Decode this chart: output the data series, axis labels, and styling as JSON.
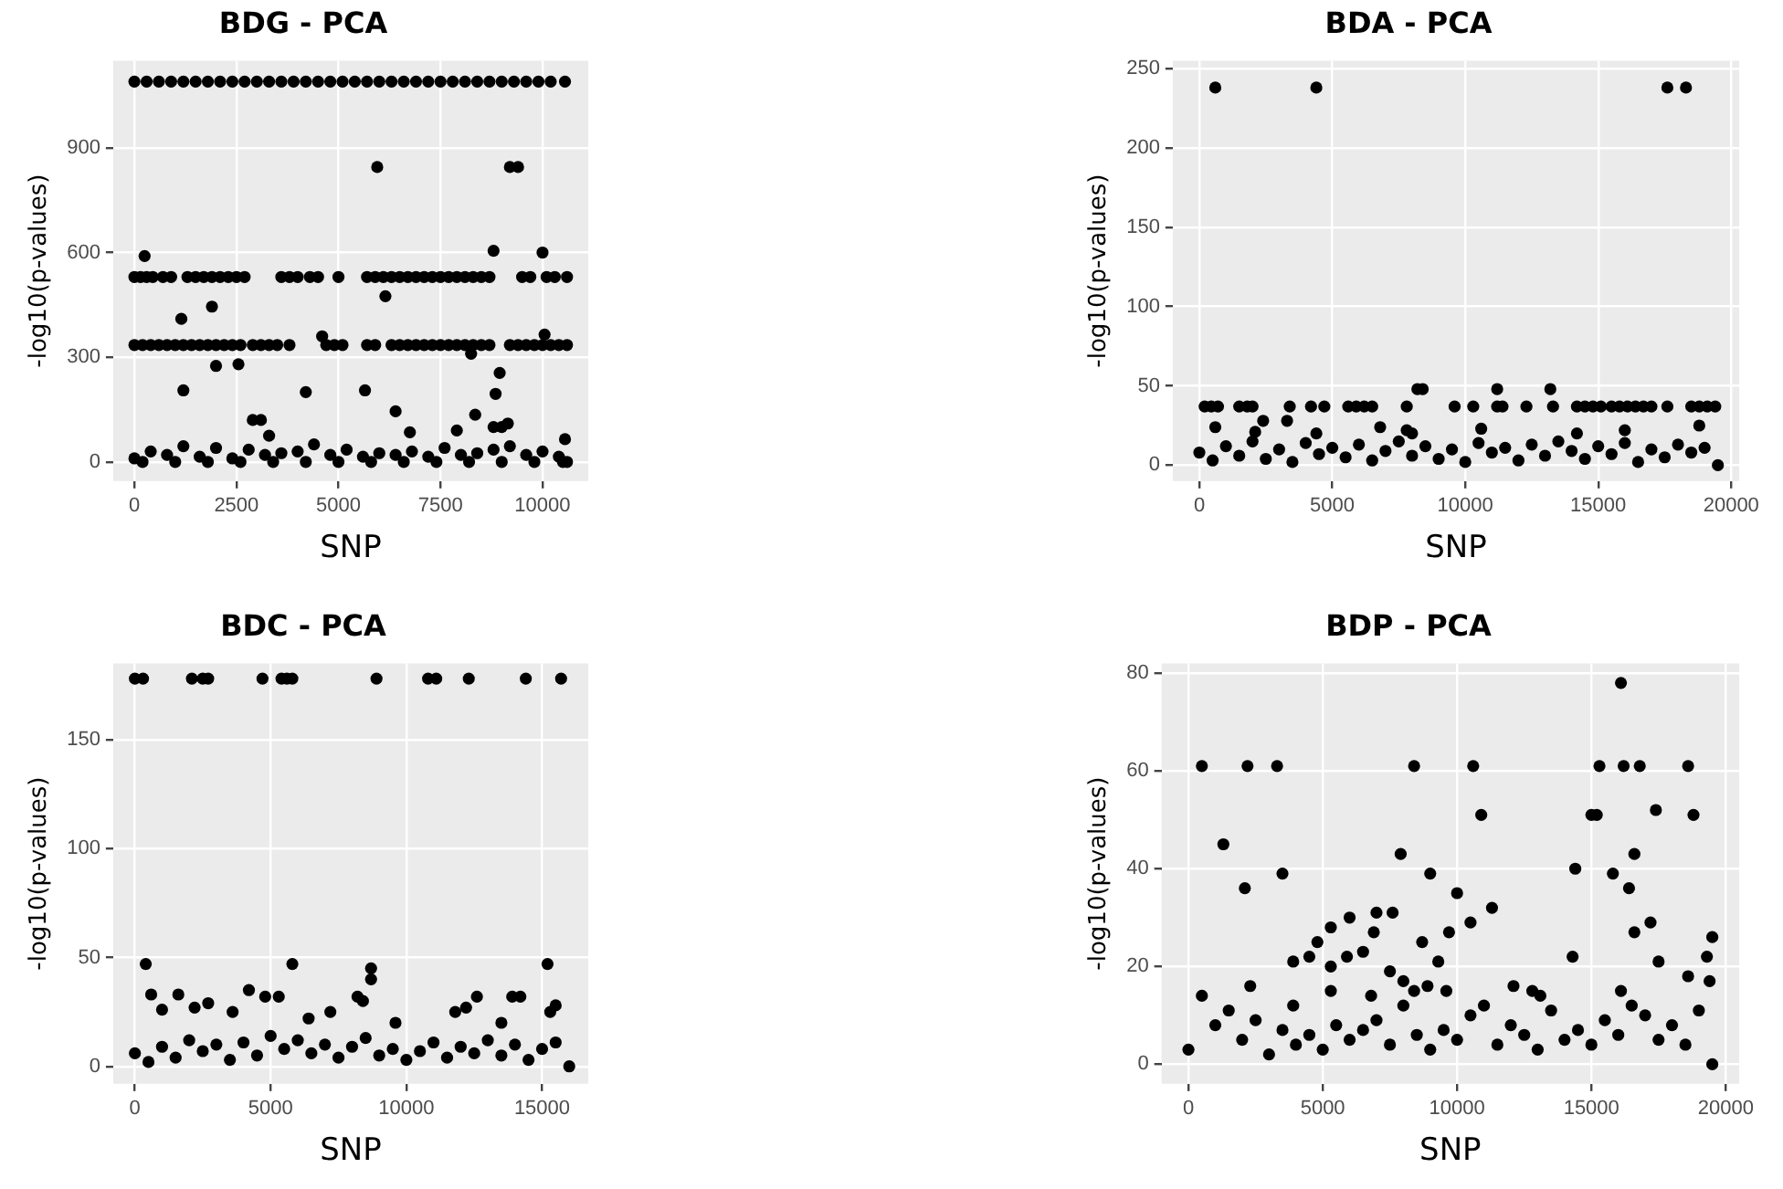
{
  "chart_data": [
    {
      "type": "scatter",
      "title": "BDG - PCA",
      "xlabel": "SNP",
      "ylabel": "-log10(p-values)",
      "xlim": [
        -520,
        11120
      ],
      "ylim": [
        -55,
        1150
      ],
      "xticks": [
        0,
        2500,
        5000,
        7500,
        10000
      ],
      "yticks": [
        0,
        300,
        600,
        900
      ],
      "grid": true,
      "marker": "circle",
      "series": [
        {
          "color": "#000000",
          "x": [
            0,
            300,
            600,
            900,
            1200,
            1500,
            1800,
            2100,
            2400,
            2700,
            3000,
            3300,
            3600,
            3900,
            4200,
            4500,
            4800,
            5100,
            5400,
            5700,
            6000,
            6300,
            6600,
            6900,
            7200,
            7500,
            7800,
            8100,
            8400,
            8700,
            9000,
            9300,
            9600,
            9900,
            10200,
            10550
          ],
          "values": [
            1090,
            1090,
            1090,
            1090,
            1090,
            1090,
            1090,
            1090,
            1090,
            1090,
            1090,
            1090,
            1090,
            1090,
            1090,
            1090,
            1090,
            1090,
            1090,
            1090,
            1090,
            1090,
            1090,
            1090,
            1090,
            1090,
            1090,
            1090,
            1090,
            1090,
            1090,
            1090,
            1090,
            1090,
            1090,
            1090
          ]
        },
        {
          "color": "#000000",
          "x": [
            0,
            150,
            300,
            450,
            700,
            900,
            1300,
            1500,
            1700,
            1900,
            2100,
            2300,
            2500,
            2700,
            3600,
            3800,
            4000,
            4300,
            4500,
            5000,
            5700,
            5900,
            6100,
            6300,
            6500,
            6700,
            6900,
            7100,
            7300,
            7500,
            7700,
            7900,
            8100,
            8300,
            8500,
            8700,
            9500,
            9700,
            10100,
            10300,
            10600
          ],
          "values": [
            530,
            530,
            530,
            530,
            530,
            530,
            530,
            530,
            530,
            530,
            530,
            530,
            530,
            530,
            530,
            530,
            530,
            530,
            530,
            530,
            530,
            530,
            530,
            530,
            530,
            530,
            530,
            530,
            530,
            530,
            530,
            530,
            530,
            530,
            530,
            530,
            530,
            530,
            530,
            530,
            530
          ]
        },
        {
          "color": "#000000",
          "x": [
            0,
            200,
            400,
            600,
            800,
            1000,
            1200,
            1400,
            1600,
            1800,
            2000,
            2200,
            2400,
            2600,
            2900,
            3100,
            3300,
            3500,
            3800,
            4700,
            4900,
            5100,
            5700,
            5900,
            6300,
            6500,
            6700,
            6900,
            7100,
            7300,
            7500,
            7700,
            7900,
            8100,
            8300,
            8500,
            8700,
            9200,
            9400,
            9600,
            9800,
            10000,
            10200,
            10400,
            10600
          ],
          "values": [
            335,
            335,
            335,
            335,
            335,
            335,
            335,
            335,
            335,
            335,
            335,
            335,
            335,
            335,
            335,
            335,
            335,
            335,
            335,
            335,
            335,
            335,
            335,
            335,
            335,
            335,
            335,
            335,
            335,
            335,
            335,
            335,
            335,
            335,
            335,
            335,
            335,
            335,
            335,
            335,
            335,
            335,
            335,
            335,
            335
          ]
        },
        {
          "color": "#000000",
          "x": [
            250,
            1150,
            1200,
            1900,
            2000,
            2550,
            2900,
            3100,
            3300,
            4200,
            4600,
            5650,
            5950,
            6150,
            6400,
            6750,
            7900,
            8350,
            8250,
            8800,
            8850,
            8800,
            8950,
            9000,
            9150,
            9200,
            9400,
            10000,
            10050,
            10550
          ],
          "values": [
            590,
            410,
            205,
            445,
            275,
            280,
            120,
            120,
            75,
            200,
            360,
            205,
            845,
            475,
            145,
            85,
            90,
            135,
            310,
            605,
            195,
            100,
            255,
            100,
            110,
            845,
            845,
            600,
            365,
            65
          ]
        },
        {
          "color": "#000000",
          "x": [
            0,
            400,
            800,
            1200,
            1600,
            2000,
            2400,
            2800,
            3200,
            3600,
            4000,
            4400,
            4800,
            5200,
            5600,
            6000,
            6400,
            6800,
            7200,
            7600,
            8000,
            8400,
            8800,
            9200,
            9600,
            10000,
            10400,
            10600
          ],
          "values": [
            10,
            30,
            20,
            45,
            15,
            40,
            10,
            35,
            20,
            25,
            30,
            50,
            20,
            35,
            15,
            25,
            20,
            30,
            15,
            40,
            20,
            25,
            35,
            45,
            20,
            30,
            15,
            0
          ]
        },
        {
          "color": "#000000",
          "x": [
            200,
            1000,
            1800,
            2600,
            3400,
            4200,
            5000,
            5800,
            6600,
            7400,
            8200,
            9000,
            9800,
            10500
          ],
          "values": [
            0,
            0,
            0,
            0,
            0,
            0,
            0,
            0,
            0,
            0,
            0,
            0,
            0,
            0
          ]
        }
      ]
    },
    {
      "type": "scatter",
      "title": "BDA - PCA",
      "xlabel": "SNP",
      "ylabel": "-log10(p-values)",
      "xlim": [
        -1000,
        20300
      ],
      "ylim": [
        -10,
        255
      ],
      "xticks": [
        0,
        5000,
        10000,
        15000,
        20000
      ],
      "yticks": [
        0,
        50,
        100,
        150,
        200,
        250
      ],
      "grid": true,
      "marker": "circle",
      "series": [
        {
          "color": "#000000",
          "x": [
            600,
            4400,
            17600,
            18300
          ],
          "values": [
            238,
            238,
            238,
            238
          ]
        },
        {
          "color": "#000000",
          "x": [
            8200,
            8400,
            11200,
            13200
          ],
          "values": [
            48,
            48,
            48,
            48
          ]
        },
        {
          "color": "#000000",
          "x": [
            200,
            450,
            700,
            1500,
            1800,
            2000,
            3400,
            4200,
            4700,
            5600,
            5900,
            6200,
            6500,
            7800,
            9600,
            10300,
            11200,
            11400,
            12300,
            13300,
            14200,
            14500,
            14800,
            15100,
            15500,
            15800,
            16100,
            16400,
            16700,
            17000,
            17600,
            18500,
            18800,
            19100,
            19400
          ],
          "values": [
            37,
            37,
            37,
            37,
            37,
            37,
            37,
            37,
            37,
            37,
            37,
            37,
            37,
            37,
            37,
            37,
            37,
            37,
            37,
            37,
            37,
            37,
            37,
            37,
            37,
            37,
            37,
            37,
            37,
            37,
            37,
            37,
            37,
            37,
            37
          ]
        },
        {
          "color": "#000000",
          "x": [
            2400,
            3300,
            2100,
            6800,
            7800,
            8000,
            10600,
            14200,
            18800,
            16000,
            600,
            4400
          ],
          "values": [
            28,
            28,
            21,
            24,
            22,
            20,
            23,
            20,
            25,
            22,
            24,
            20
          ]
        },
        {
          "color": "#000000",
          "x": [
            0,
            500,
            1000,
            1500,
            2000,
            2500,
            3000,
            3500,
            4000,
            4500,
            5000,
            5500,
            6000,
            6500,
            7000,
            7500,
            8000,
            8500,
            9000,
            9500,
            10000,
            10500,
            11000,
            11500,
            12000,
            12500,
            13000,
            13500,
            14000,
            14500,
            15000,
            15500,
            16000,
            16500,
            17000,
            17500,
            18000,
            18500,
            19000,
            19500
          ],
          "values": [
            8,
            3,
            12,
            6,
            15,
            4,
            10,
            2,
            14,
            7,
            11,
            5,
            13,
            3,
            9,
            15,
            6,
            12,
            4,
            10,
            2,
            14,
            8,
            11,
            3,
            13,
            6,
            15,
            9,
            4,
            12,
            7,
            14,
            2,
            10,
            5,
            13,
            8,
            11,
            0
          ]
        }
      ]
    },
    {
      "type": "scatter",
      "title": "BDC - PCA",
      "xlabel": "SNP",
      "ylabel": "-log10(p-values)",
      "xlim": [
        -800,
        16700
      ],
      "ylim": [
        -8,
        185
      ],
      "xticks": [
        0,
        5000,
        10000,
        15000
      ],
      "yticks": [
        0,
        50,
        100,
        150
      ],
      "grid": true,
      "marker": "circle",
      "series": [
        {
          "color": "#000000",
          "x": [
            0,
            300,
            2100,
            2500,
            2700,
            4700,
            5400,
            5600,
            5800,
            8900,
            10800,
            11100,
            12300,
            14400,
            15700
          ],
          "values": [
            178,
            178,
            178,
            178,
            178,
            178,
            178,
            178,
            178,
            178,
            178,
            178,
            178,
            178,
            178
          ]
        },
        {
          "color": "#000000",
          "x": [
            400,
            5800,
            8700,
            8700,
            15200,
            600,
            1600,
            4200,
            4800,
            5300,
            8200,
            8400,
            12600,
            13900,
            14200,
            15500,
            13500,
            9600,
            11800,
            7200,
            3600,
            1000,
            2200,
            2700,
            6400,
            12200,
            15300
          ],
          "values": [
            47,
            47,
            45,
            40,
            47,
            33,
            33,
            35,
            32,
            32,
            32,
            30,
            32,
            32,
            32,
            28,
            20,
            20,
            25,
            25,
            25,
            26,
            27,
            29,
            22,
            27,
            25
          ]
        },
        {
          "color": "#000000",
          "x": [
            0,
            500,
            1000,
            1500,
            2000,
            2500,
            3000,
            3500,
            4000,
            4500,
            5000,
            5500,
            6000,
            6500,
            7000,
            7500,
            8000,
            8500,
            9000,
            9500,
            10000,
            10500,
            11000,
            11500,
            12000,
            12500,
            13000,
            13500,
            14000,
            14500,
            15000,
            15500,
            16000
          ],
          "values": [
            6,
            2,
            9,
            4,
            12,
            7,
            10,
            3,
            11,
            5,
            14,
            8,
            12,
            6,
            10,
            4,
            9,
            13,
            5,
            8,
            3,
            7,
            11,
            4,
            9,
            6,
            12,
            5,
            10,
            3,
            8,
            11,
            0
          ]
        }
      ]
    },
    {
      "type": "scatter",
      "title": "BDP - PCA",
      "xlabel": "SNP",
      "ylabel": "-log10(p-values)",
      "xlim": [
        -1000,
        20500
      ],
      "ylim": [
        -4,
        82
      ],
      "xticks": [
        0,
        5000,
        10000,
        15000,
        20000
      ],
      "yticks": [
        0,
        20,
        40,
        60,
        80
      ],
      "grid": true,
      "marker": "circle",
      "series": [
        {
          "color": "#000000",
          "x": [
            500,
            2200,
            3300,
            8400,
            10600,
            15300,
            16200,
            16800,
            18600,
            16100
          ],
          "values": [
            61,
            61,
            61,
            61,
            61,
            61,
            61,
            61,
            61,
            78
          ]
        },
        {
          "color": "#000000",
          "x": [
            1300,
            2100,
            2300,
            3500,
            3900,
            3900,
            4500,
            4800,
            5300,
            5300,
            5300,
            5900,
            6000,
            6500,
            6800,
            6900,
            7000,
            7600,
            7500,
            7900,
            8000,
            8400,
            8700,
            8900,
            9000,
            9300,
            9700,
            9600,
            10000,
            10500,
            10900,
            11300,
            12100,
            12800,
            13100,
            14300,
            14400,
            15000,
            15200,
            15800,
            16100,
            16400,
            16600,
            16600,
            17200,
            17400,
            17500,
            18600,
            18800,
            19300,
            19400,
            19500
          ],
          "values": [
            45,
            36,
            16,
            39,
            21,
            12,
            22,
            25,
            28,
            20,
            15,
            22,
            30,
            23,
            14,
            27,
            31,
            31,
            19,
            43,
            17,
            15,
            25,
            16,
            39,
            21,
            27,
            15,
            35,
            29,
            51,
            32,
            16,
            15,
            14,
            22,
            40,
            51,
            51,
            39,
            15,
            36,
            43,
            27,
            29,
            52,
            21,
            18,
            51,
            22,
            17,
            26
          ]
        },
        {
          "color": "#000000",
          "x": [
            0,
            500,
            1000,
            1500,
            2000,
            2500,
            3000,
            3500,
            4000,
            4500,
            5000,
            5500,
            6000,
            6500,
            7000,
            7500,
            8000,
            8500,
            9000,
            9500,
            10000,
            10500,
            11000,
            11500,
            12000,
            12500,
            13000,
            13500,
            14000,
            14500,
            15000,
            15500,
            16000,
            16500,
            17000,
            17500,
            18000,
            18500,
            19000,
            19500
          ],
          "values": [
            3,
            14,
            8,
            11,
            5,
            9,
            2,
            7,
            4,
            6,
            3,
            8,
            5,
            7,
            9,
            4,
            12,
            6,
            3,
            7,
            5,
            10,
            12,
            4,
            8,
            6,
            3,
            11,
            5,
            7,
            4,
            9,
            6,
            12,
            10,
            5,
            8,
            4,
            11,
            0
          ]
        }
      ]
    }
  ]
}
